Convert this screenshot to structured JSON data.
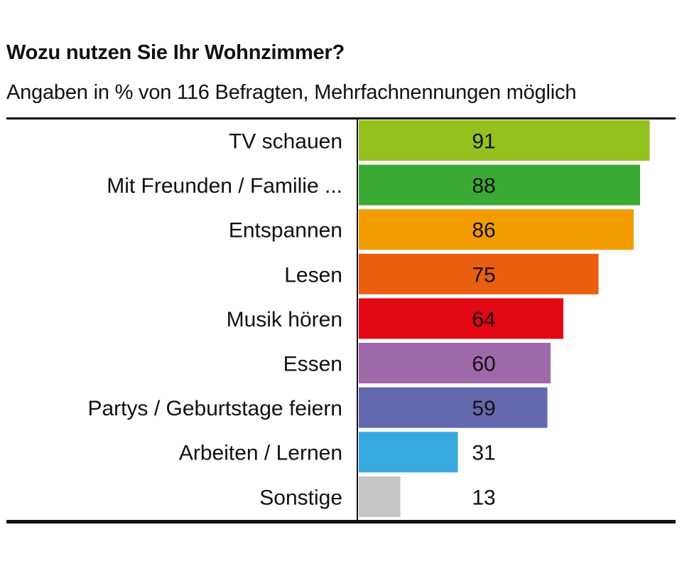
{
  "chart_data": {
    "type": "bar",
    "orientation": "horizontal",
    "title": "Wozu nutzen Sie Ihr Wohnzimmer?",
    "subtitle": "Angaben in % von 116 Befragten, Mehrfachnennungen möglich",
    "xlim": [
      0,
      100
    ],
    "grid": false,
    "legend": "none",
    "categories": [
      "TV schauen",
      "Mit Freunden / Familie ...",
      "Entspannen",
      "Lesen",
      "Musik hören",
      "Essen",
      "Partys / Geburtstage feiern",
      "Arbeiten / Lernen",
      "Sonstige"
    ],
    "values": [
      91,
      88,
      86,
      75,
      64,
      60,
      59,
      31,
      13
    ],
    "colors": [
      "#95c11f",
      "#3aaa35",
      "#f39c00",
      "#e95e0f",
      "#e30613",
      "#9e69aa",
      "#6468ae",
      "#37a9df",
      "#c6c6c6"
    ]
  }
}
